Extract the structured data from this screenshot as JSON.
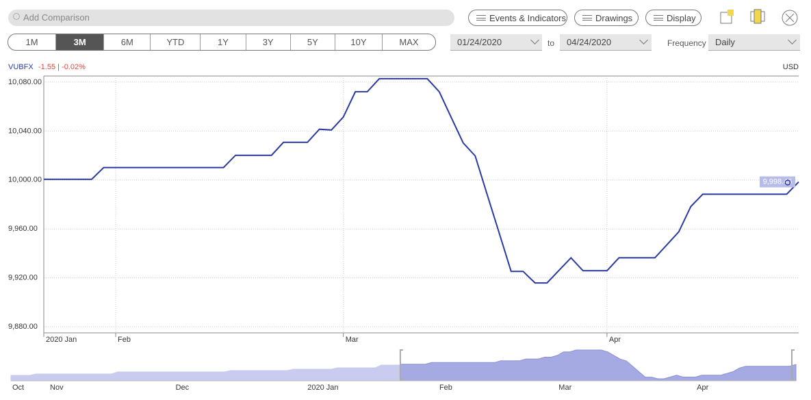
{
  "toolbar": {
    "search_placeholder": "Add Comparison",
    "buttons": [
      "Events & Indicators",
      "Drawings",
      "Display"
    ],
    "ranges": [
      "1M",
      "3M",
      "6M",
      "YTD",
      "1Y",
      "3Y",
      "5Y",
      "10Y",
      "MAX"
    ],
    "active_range": "3M",
    "date_from": "01/24/2020",
    "date_to_label": "to",
    "date_to": "04/24/2020",
    "frequency_label": "Frequency",
    "frequency": "Daily"
  },
  "chart_data": [
    {
      "type": "line",
      "symbol": "VUBFX",
      "change": "-1.55 | -0.02%",
      "currency": "USD",
      "color": "#2b3aa0",
      "grid": true,
      "categories": [
        "2020 Jan",
        null,
        null,
        null,
        null,
        null,
        "Feb",
        null,
        null,
        null,
        null,
        null,
        null,
        null,
        null,
        null,
        null,
        null,
        null,
        null,
        null,
        null,
        null,
        null,
        null,
        "Mar",
        null,
        null,
        null,
        null,
        null,
        null,
        null,
        null,
        null,
        null,
        null,
        null,
        null,
        null,
        null,
        null,
        null,
        null,
        null,
        null,
        null,
        "Apr",
        null,
        null,
        null,
        null,
        null,
        null,
        null,
        null,
        null,
        null,
        null,
        null,
        null,
        null,
        null,
        null
      ],
      "values": [
        10000.6,
        10000.6,
        10000.6,
        10000.6,
        10000.6,
        10010.2,
        10010.2,
        10010.2,
        10010.2,
        10010.2,
        10010.2,
        10010.2,
        10010.2,
        10010.2,
        10010.2,
        10010.2,
        10020.2,
        10020.2,
        10020.2,
        10020.2,
        10030.8,
        10030.8,
        10030.8,
        10041.5,
        10040.9,
        10051.5,
        10072.2,
        10072.2,
        10082.8,
        10082.8,
        10082.8,
        10082.8,
        10082.8,
        10072.2,
        10051.2,
        10030.3,
        10019.7,
        9988.2,
        9956.8,
        9925.3,
        9925.3,
        9915.8,
        9915.8,
        9926.1,
        9936.4,
        9925.8,
        9925.8,
        9925.8,
        9936.4,
        9936.4,
        9936.4,
        9936.4,
        9947.0,
        9957.7,
        9978.3,
        9988.4,
        9988.4,
        9988.4,
        9988.4,
        9988.4,
        9988.4,
        9988.4,
        9988.4,
        9998.45
      ],
      "price_tag": {
        "value": 9998.45,
        "label": "9,998.45"
      },
      "ylim": [
        9875,
        10085
      ],
      "yticks": [
        {
          "value": 9880,
          "label": "9,880.00"
        },
        {
          "value": 9920,
          "label": "9,920.00"
        },
        {
          "value": 9960,
          "label": "9,960.00"
        },
        {
          "value": 10000,
          "label": "10,000.00"
        },
        {
          "value": 10040,
          "label": "10,040.00"
        },
        {
          "value": 10080,
          "label": "10,080.00"
        }
      ]
    },
    {
      "type": "area",
      "color": "#c9ccee",
      "selected_color": "#a5aae2",
      "categories": [
        "Oct",
        null,
        null,
        null,
        null,
        null,
        "Nov",
        null,
        null,
        null,
        null,
        null,
        null,
        null,
        null,
        null,
        null,
        null,
        null,
        null,
        null,
        null,
        null,
        null,
        null,
        null,
        "Dec",
        null,
        null,
        null,
        null,
        null,
        null,
        null,
        null,
        null,
        null,
        null,
        null,
        null,
        null,
        null,
        null,
        null,
        null,
        null,
        null,
        "2020 Jan",
        null,
        null,
        null,
        null,
        null,
        null,
        null,
        null,
        null,
        null,
        null,
        null,
        null,
        null,
        null,
        null,
        null,
        null,
        null,
        null,
        "Feb",
        null,
        null,
        null,
        null,
        null,
        null,
        null,
        null,
        null,
        null,
        null,
        null,
        null,
        null,
        null,
        null,
        null,
        null,
        "Mar",
        null,
        null,
        null,
        null,
        null,
        null,
        null,
        null,
        null,
        null,
        null,
        null,
        null,
        null,
        null,
        null,
        null,
        null,
        null,
        null,
        null,
        "Apr",
        null,
        null,
        null,
        null,
        null,
        null,
        null,
        null,
        null,
        null,
        null,
        null,
        null,
        null,
        null,
        null
      ],
      "values": [
        9935.7,
        9935.7,
        9935.7,
        9935.7,
        9943.7,
        9943.7,
        9943.7,
        9943.7,
        9943.7,
        9943.7,
        9943.7,
        9943.7,
        9943.7,
        9943.7,
        9943.7,
        9943.7,
        9943.7,
        9955.6,
        9955.6,
        9955.6,
        9955.6,
        9955.6,
        9955.6,
        9955.6,
        9955.6,
        9955.6,
        9955.6,
        9955.6,
        9955.6,
        9955.6,
        9955.6,
        9955.6,
        9955.6,
        9955.6,
        9955.6,
        9963.6,
        9963.6,
        9963.6,
        9963.6,
        9963.6,
        9963.6,
        9963.6,
        9963.6,
        9963.6,
        9963.6,
        9971.5,
        9971.5,
        9971.5,
        9971.5,
        9971.5,
        9971.5,
        9971.5,
        9979.5,
        9979.5,
        9979.5,
        9979.5,
        9979.5,
        9979.5,
        9979.5,
        9995.4,
        9995.4,
        9995.4,
        10000.6,
        10000.6,
        10000.6,
        10000.6,
        10000.6,
        10010.2,
        10010.2,
        10010.2,
        10010.2,
        10010.2,
        10010.2,
        10010.2,
        10010.2,
        10010.2,
        10010.2,
        10010.2,
        10020.2,
        10020.2,
        10020.2,
        10020.2,
        10030.8,
        10030.8,
        10030.8,
        10041.5,
        10040.9,
        10051.5,
        10072.2,
        10072.2,
        10082.8,
        10082.8,
        10082.8,
        10082.8,
        10082.8,
        10072.2,
        10051.2,
        10030.3,
        10019.7,
        9988.2,
        9956.8,
        9925.3,
        9925.3,
        9915.8,
        9915.8,
        9926.1,
        9936.4,
        9925.8,
        9925.8,
        9925.8,
        9936.4,
        9936.4,
        9936.4,
        9936.4,
        9947.0,
        9957.7,
        9978.3,
        9988.4,
        9988.4,
        9988.4,
        9988.4,
        9988.4,
        9988.4,
        9988.4,
        9988.4,
        9998.45
      ]
    }
  ]
}
